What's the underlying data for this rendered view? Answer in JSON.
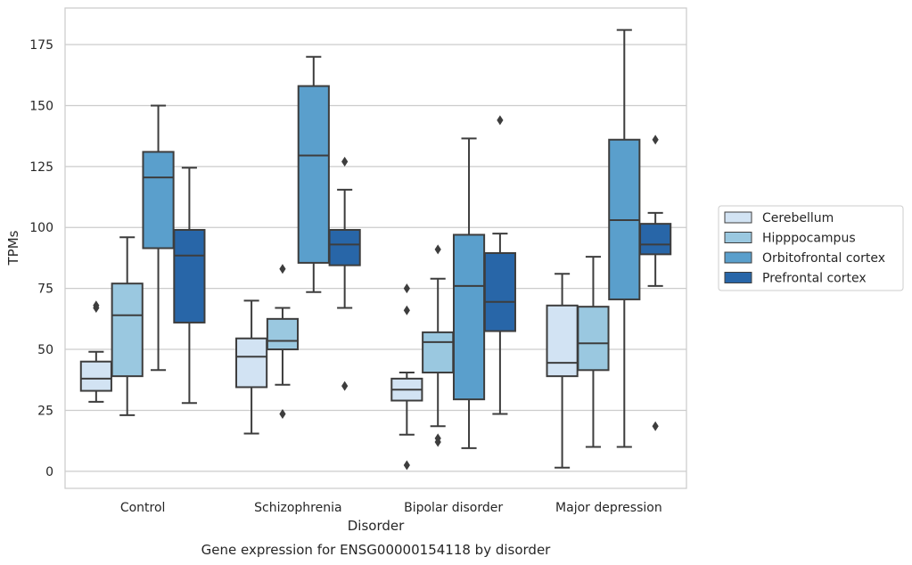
{
  "caption": "Gene expression for ENSG00000154118 by disorder",
  "chart_data": {
    "type": "boxplot",
    "xlabel": "Disorder",
    "ylabel": "TPMs",
    "categories": [
      "Control",
      "Schizophrenia",
      "Bipolar disorder",
      "Major depression"
    ],
    "yticks": [
      0,
      25,
      50,
      75,
      100,
      125,
      150,
      175
    ],
    "ylim": [
      -7,
      190
    ],
    "grid": true,
    "legend": "right",
    "series": [
      {
        "name": "Cerebellum",
        "color": "#d2e3f3",
        "boxes": [
          {
            "whisker_low": 28.5,
            "q1": 33,
            "median": 38,
            "q3": 45,
            "whisker_high": 49,
            "outliers": [
              67,
              68
            ]
          },
          {
            "whisker_low": 15.5,
            "q1": 34.5,
            "median": 47,
            "q3": 54.5,
            "whisker_high": 70,
            "outliers": []
          },
          {
            "whisker_low": 15,
            "q1": 29,
            "median": 33.5,
            "q3": 38,
            "whisker_high": 40.5,
            "outliers": [
              2.5,
              66,
              75
            ]
          },
          {
            "whisker_low": 1.5,
            "q1": 39,
            "median": 44.5,
            "q3": 68,
            "whisker_high": 81,
            "outliers": []
          }
        ]
      },
      {
        "name": "Hipppocampus",
        "color": "#9ac8e0",
        "boxes": [
          {
            "whisker_low": 23,
            "q1": 39,
            "median": 64,
            "q3": 77,
            "whisker_high": 96,
            "outliers": []
          },
          {
            "whisker_low": 35.5,
            "q1": 50,
            "median": 53.5,
            "q3": 62.5,
            "whisker_high": 67,
            "outliers": [
              23.5,
              83
            ]
          },
          {
            "whisker_low": 18.5,
            "q1": 40.5,
            "median": 53,
            "q3": 57,
            "whisker_high": 79,
            "outliers": [
              12,
              13.5,
              91
            ]
          },
          {
            "whisker_low": 10,
            "q1": 41.5,
            "median": 52.5,
            "q3": 67.5,
            "whisker_high": 88,
            "outliers": []
          }
        ]
      },
      {
        "name": "Orbitofrontal cortex",
        "color": "#5a9fcc",
        "boxes": [
          {
            "whisker_low": 41.5,
            "q1": 91.5,
            "median": 120.5,
            "q3": 131,
            "whisker_high": 150,
            "outliers": []
          },
          {
            "whisker_low": 73.5,
            "q1": 85.5,
            "median": 129.5,
            "q3": 158,
            "whisker_high": 170,
            "outliers": []
          },
          {
            "whisker_low": 9.5,
            "q1": 29.5,
            "median": 76,
            "q3": 97,
            "whisker_high": 136.5,
            "outliers": []
          },
          {
            "whisker_low": 10,
            "q1": 70.5,
            "median": 103,
            "q3": 136,
            "whisker_high": 181,
            "outliers": []
          }
        ]
      },
      {
        "name": "Prefrontal cortex",
        "color": "#2866a8",
        "boxes": [
          {
            "whisker_low": 28,
            "q1": 61,
            "median": 88.5,
            "q3": 99,
            "whisker_high": 124.5,
            "outliers": []
          },
          {
            "whisker_low": 67,
            "q1": 84.5,
            "median": 93,
            "q3": 99,
            "whisker_high": 115.5,
            "outliers": [
              35,
              127
            ]
          },
          {
            "whisker_low": 23.5,
            "q1": 57.5,
            "median": 69.5,
            "q3": 89.5,
            "whisker_high": 97.5,
            "outliers": [
              144
            ]
          },
          {
            "whisker_low": 76,
            "q1": 89,
            "median": 93,
            "q3": 101.5,
            "whisker_high": 106,
            "outliers": [
              18.5,
              136
            ]
          }
        ]
      }
    ]
  }
}
